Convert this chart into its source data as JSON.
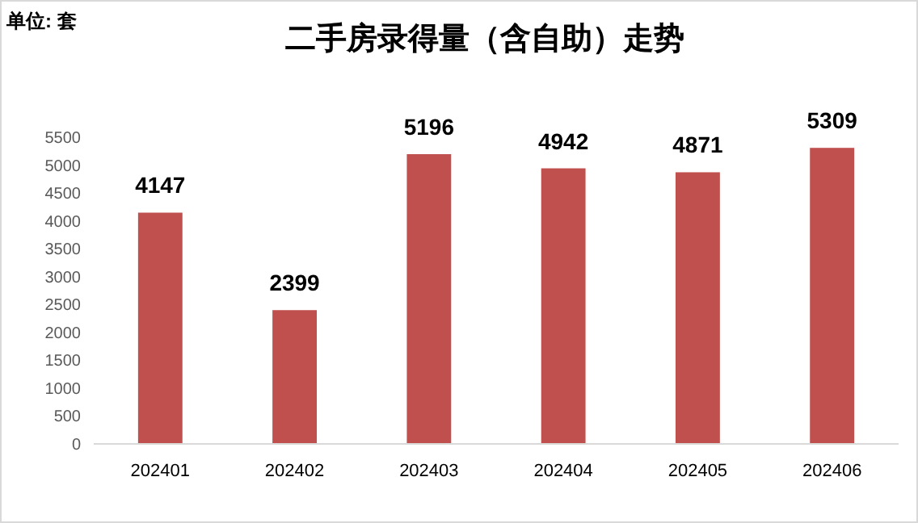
{
  "chart_data": {
    "type": "bar",
    "title": "二手房录得量（含自助）走势",
    "annotations": [
      "单位: 套"
    ],
    "categories": [
      "202401",
      "202402",
      "202403",
      "202404",
      "202405",
      "202406"
    ],
    "values": [
      4147,
      2399,
      5196,
      4942,
      4871,
      5309
    ],
    "color": "#c0504d",
    "ylim": [
      0,
      5500
    ],
    "yticks": [
      0,
      500,
      1000,
      1500,
      2000,
      2500,
      3000,
      3500,
      4000,
      4500,
      5000,
      5500
    ],
    "grid": false,
    "data_labels": true
  }
}
